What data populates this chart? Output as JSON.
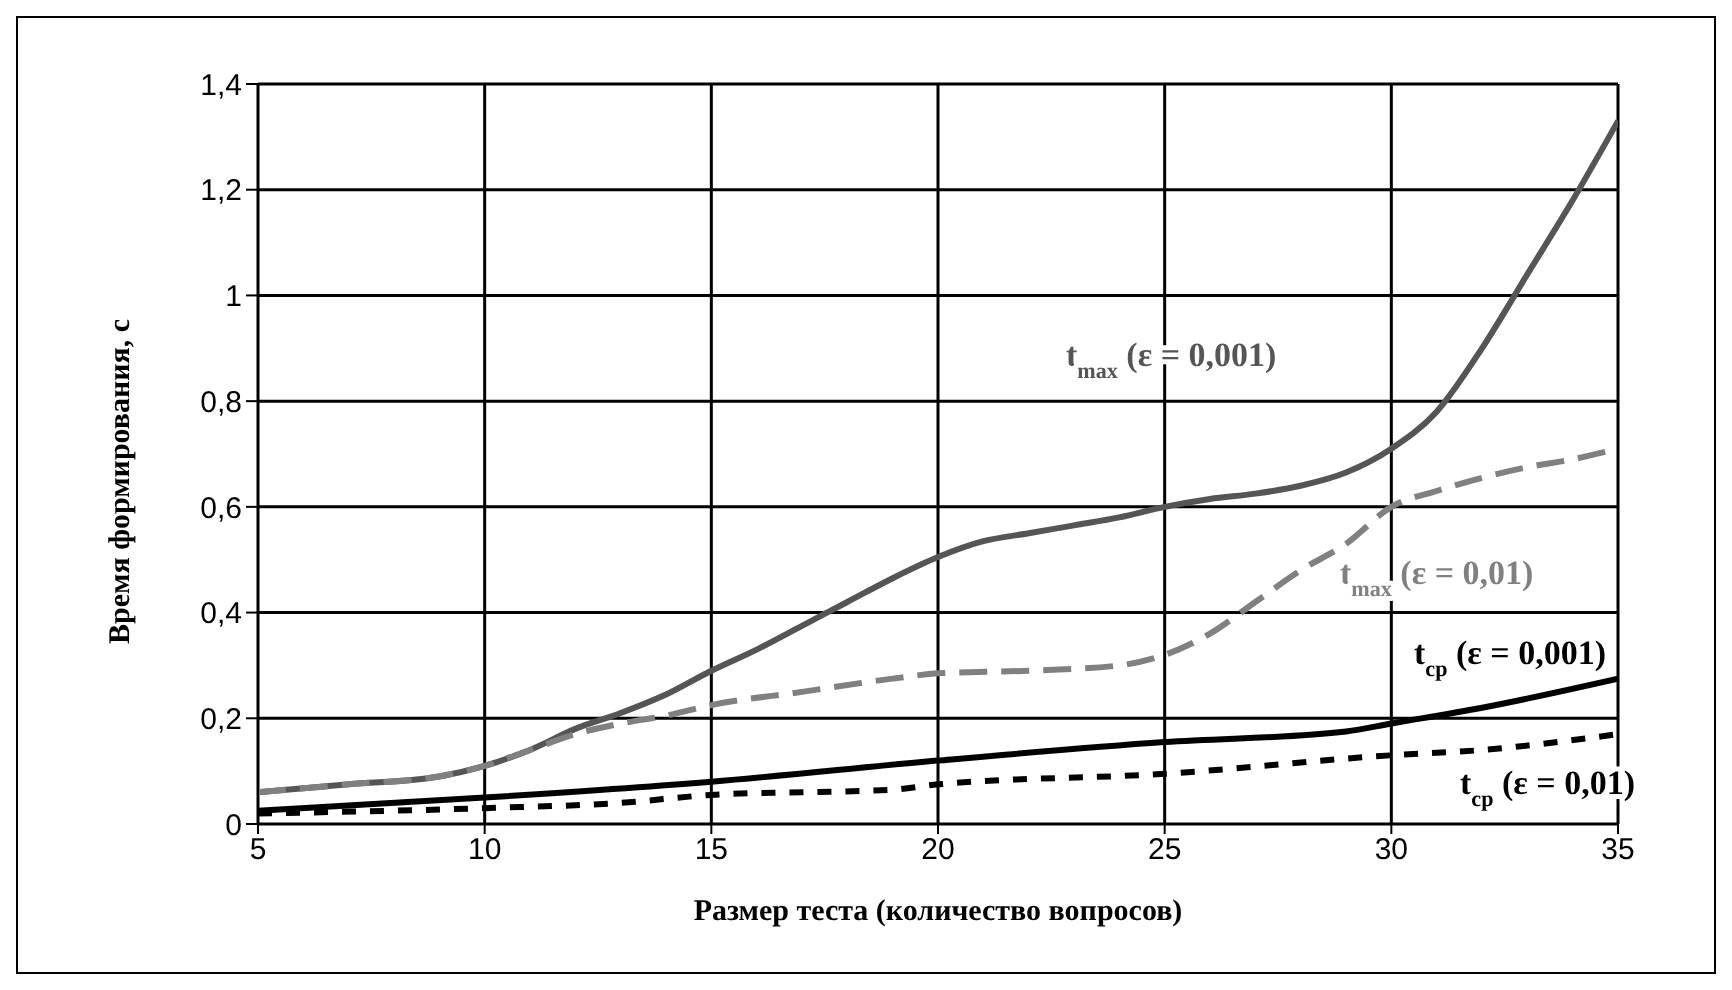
{
  "chart_data": {
    "type": "line",
    "xlabel": "Размер теста (количество вопросов)",
    "ylabel": "Время формирования, с",
    "xlim": [
      5,
      35
    ],
    "xticks": [
      5,
      10,
      15,
      20,
      25,
      30,
      35
    ],
    "ylim": [
      0,
      1.4
    ],
    "yticks": [
      0,
      {
        "value": 0.2,
        "label": "0,2"
      },
      {
        "value": 0.4,
        "label": "0,4"
      },
      {
        "value": 0.6,
        "label": "0,6"
      },
      {
        "value": 0.8,
        "label": "0,8"
      },
      1,
      {
        "value": 1.2,
        "label": "1,2"
      },
      {
        "value": 1.4,
        "label": "1,4"
      }
    ],
    "grid": true,
    "legend": false,
    "marker": "none",
    "series": [
      {
        "name": "t$_{max}$ (ε = 0,001)",
        "color": "#555555",
        "line_style": "solid",
        "x": [
          5,
          7,
          9,
          10,
          11,
          12,
          13,
          14,
          15,
          16,
          17,
          18,
          19,
          20,
          21,
          22,
          23,
          24,
          25,
          26,
          27,
          28,
          29,
          30,
          31,
          32,
          33,
          34,
          35
        ],
        "values": [
          0.06,
          0.075,
          0.09,
          0.11,
          0.14,
          0.18,
          0.21,
          0.245,
          0.29,
          0.33,
          0.375,
          0.42,
          0.465,
          0.505,
          0.535,
          0.55,
          0.565,
          0.58,
          0.6,
          0.615,
          0.625,
          0.64,
          0.665,
          0.71,
          0.78,
          0.9,
          1.04,
          1.18,
          1.33
        ]
      },
      {
        "name": "t$_{max}$ (ε = 0,01)",
        "color": "#808080",
        "line_style": "dashed",
        "x": [
          5,
          7,
          9,
          10,
          11,
          12,
          13,
          14,
          15,
          17,
          19,
          20,
          22,
          24,
          25,
          26,
          27,
          28,
          29,
          30,
          31,
          32,
          33,
          34,
          35
        ],
        "values": [
          0.06,
          0.075,
          0.09,
          0.11,
          0.14,
          0.17,
          0.19,
          0.205,
          0.225,
          0.25,
          0.275,
          0.285,
          0.29,
          0.3,
          0.32,
          0.36,
          0.42,
          0.48,
          0.53,
          0.6,
          0.63,
          0.655,
          0.675,
          0.69,
          0.71
        ]
      },
      {
        "name": "t$_{ср}$ (ε = 0,001)",
        "color": "#000000",
        "line_style": "solid",
        "x": [
          5,
          10,
          15,
          20,
          25,
          29,
          30,
          32,
          35
        ],
        "values": [
          0.025,
          0.05,
          0.08,
          0.12,
          0.155,
          0.175,
          0.19,
          0.22,
          0.275
        ]
      },
      {
        "name": "t$_{ср}$ (ε = 0,01)",
        "color": "#000000",
        "line_style": "dotted",
        "x": [
          5,
          10,
          13,
          15,
          19,
          20,
          25,
          30,
          32,
          35
        ],
        "values": [
          0.02,
          0.03,
          0.04,
          0.055,
          0.065,
          0.075,
          0.095,
          0.13,
          0.14,
          0.17
        ]
      }
    ]
  }
}
